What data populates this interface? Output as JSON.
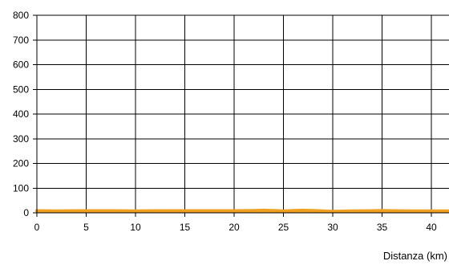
{
  "chart_data": {
    "type": "area",
    "title": "",
    "xlabel": "Distanza (km)",
    "ylabel": "",
    "xlim": [
      0,
      42
    ],
    "ylim": [
      0,
      800
    ],
    "x_ticks": [
      0,
      5,
      10,
      15,
      20,
      25,
      30,
      35,
      40
    ],
    "y_ticks": [
      0,
      100,
      200,
      300,
      400,
      500,
      600,
      700,
      800
    ],
    "grid": true,
    "legend": "none",
    "series": [
      {
        "color": "#f0a020",
        "x": [
          0,
          2,
          4,
          6,
          8,
          10,
          12,
          14,
          16,
          18,
          20,
          22,
          23,
          24,
          25,
          26,
          27,
          28,
          30,
          32,
          34,
          35,
          36,
          38,
          40,
          42
        ],
        "y": [
          8,
          7,
          8,
          8,
          8,
          7,
          8,
          8,
          8,
          8,
          8,
          9,
          10,
          9,
          7,
          9,
          10,
          9,
          6,
          7,
          8,
          9,
          8,
          7,
          7,
          7
        ]
      }
    ]
  }
}
